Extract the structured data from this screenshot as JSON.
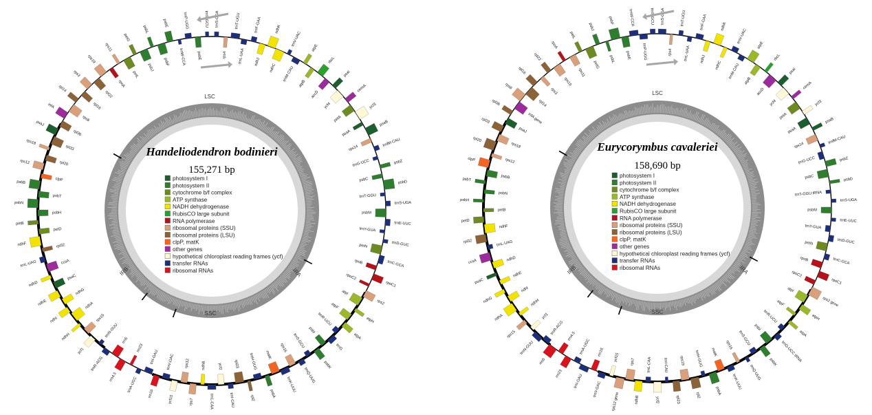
{
  "legend": [
    {
      "key": "photosystem_I",
      "label": "photosystem I",
      "color": "#1c5e2e"
    },
    {
      "key": "photosystem_II",
      "label": "photosystem II",
      "color": "#2f7d2f"
    },
    {
      "key": "cytochrome",
      "label": "cytochrome b/f complex",
      "color": "#6e8a22"
    },
    {
      "key": "atp",
      "label": "ATP synthase",
      "color": "#9bb82c"
    },
    {
      "key": "ndh",
      "label": "NADH dehydrogenase",
      "color": "#f2e400"
    },
    {
      "key": "rubisco",
      "label": "RubisCO large subunit",
      "color": "#2ca02c"
    },
    {
      "key": "rnapol",
      "label": "RNA polymerase",
      "color": "#b5121b"
    },
    {
      "key": "rps",
      "label": "ribosomal proteins (SSU)",
      "color": "#d9a07b"
    },
    {
      "key": "rpl",
      "label": "ribosomal proteins (LSU)",
      "color": "#8c6239"
    },
    {
      "key": "clp",
      "label": "clpP, matK",
      "color": "#f26522"
    },
    {
      "key": "other",
      "label": "other genes",
      "color": "#9b2c9b"
    },
    {
      "key": "ycf",
      "label": "hypothetical chloroplast reading frames (ycf)",
      "color": "#fff8d6"
    },
    {
      "key": "trna",
      "label": "transfer RNAs",
      "color": "#1d2f7a"
    },
    {
      "key": "rrna",
      "label": "ribosomal RNAs",
      "color": "#d7141e"
    }
  ],
  "maps": [
    {
      "id": "map-handeliodendron",
      "species": "Handeliodendron bodinieri",
      "size": "155,271 bp",
      "regions": {
        "lsc": "LSC",
        "ira": "IRA",
        "ssc": "SSC",
        "irb": "IRB"
      },
      "gene_labels": [
        "trnS-GGA",
        "rps4",
        "trnT-UGU",
        "trnL-UAA",
        "trnF-GAA",
        "ndhJ",
        "ndhK",
        "ndhC",
        "trnV-UAC",
        "trnM-CAU",
        "atpE",
        "atpB",
        "rbcL",
        "accD",
        "psaI",
        "ycf4",
        "cemA",
        "petA",
        "ycf3",
        "psaA",
        "psaB",
        "rps14",
        "trnfM-CAU",
        "trnG-UCC",
        "psbZ",
        "psbC",
        "psbD",
        "trnT-GGU",
        "trnS-UGA",
        "psbM",
        "trnE-UUC",
        "trnY-GUA",
        "trnD-GUC",
        "petN",
        "trnC-GCA",
        "rpoB",
        "rpoC1",
        "rpoC2",
        "rps2",
        "atpI",
        "atpH",
        "atpF",
        "atpA",
        "trnR-UCU",
        "trnG",
        "psbI",
        "psbK",
        "trnS-GCU",
        "trnQ-UUG",
        "rps16",
        "trnK-UUU",
        "matK",
        "psbA",
        "trnH-GUG",
        "rpl2",
        "rpl23",
        "trnI-CAU",
        "ycf2",
        "trnL-CAA",
        "ndhB",
        "rps7",
        "rps12",
        "ycf15",
        "trnV-GAC",
        "rrn16",
        "trnI-GAU",
        "trnA-UGC",
        "rrn23",
        "rrn4.5",
        "rrn5",
        "trnR-ACG",
        "trnN-GUU",
        "ycf1",
        "rps15",
        "ndhH",
        "ndhA",
        "ndhI",
        "ndhG",
        "ndhE",
        "psaC",
        "ndhD",
        "ccsA",
        "trnL-UAG",
        "rpl32",
        "ndhF",
        "petD",
        "petB",
        "psbH",
        "psbN",
        "psbT",
        "psbB",
        "clpP",
        "rps12",
        "rpl20",
        "rps18",
        "rpl33",
        "psaJ",
        "rpl36",
        "infA",
        "rps8",
        "rpl14",
        "rpl16",
        "rps3",
        "rpl22",
        "rps19",
        "rpoA",
        "rps11",
        "petL",
        "petG",
        "psbJ",
        "psbL",
        "psbF",
        "psbE",
        "trnW-CCA",
        "trnP-UGG",
        "psbE",
        "trnS-GCU"
      ]
    },
    {
      "id": "map-eurycorymbus",
      "species": "Eurycorymbus cavaleriei",
      "size": "158,690 bp",
      "regions": {
        "lsc": "LSC",
        "ira": "IRA",
        "ssc": "SSC",
        "irb": "IRB"
      },
      "gene_labels": [
        "trnS-GGA",
        "rps4",
        "trnT-UGU",
        "trnL-UAA",
        "trnF-GAA",
        "ndhJ",
        "ndhK",
        "ndhC",
        "trnV-UAC",
        "trnM-CAU",
        "atpE",
        "atpB",
        "rbcL",
        "accD",
        "psaI",
        "ycf4",
        "cemA",
        "petA",
        "ycf3",
        "psaA",
        "psaB",
        "rps14",
        "trnfM-CAU",
        "trnG-UCC",
        "psbZ",
        "psbC",
        "psbD",
        "trnT-GGU tRNA",
        "trnS-UGA",
        "psbM",
        "trnE-UUC",
        "trnY-GUA",
        "trnD-GUC",
        "petN",
        "trnC-GCA",
        "rpoB",
        "rpoC1",
        "rpoC2",
        "rps2 gene",
        "atpI",
        "atpH",
        "atpF",
        "atpA",
        "trnR-UCU",
        "trnG-UCC tRNA",
        "psbI",
        "psbK",
        "trnS-GCU",
        "trnQ-UUG",
        "rps16",
        "trnK-UUU",
        "matK",
        "psbA",
        "trnH-GUG",
        "rpl2",
        "rps19",
        "rpl23",
        "trnI-CAU",
        "ycf2",
        "trnL-CAA",
        "ndhB",
        "rps7",
        "rps12 gene",
        "ycf15",
        "trnV-GAC",
        "rrn16",
        "trnI-GAU",
        "trnA-UGC",
        "rrn23",
        "rrn4.5",
        "rrn5",
        "trnR-ACG",
        "trnN-GUU",
        "ycf1",
        "rps15",
        "ndhH",
        "ndhA",
        "ndhI",
        "ndhG",
        "ndhE",
        "psaC",
        "ndhD",
        "ccsA",
        "trnL-UAG",
        "rpl32",
        "ndhF",
        "petD",
        "petB",
        "psbH",
        "psbN",
        "psbT",
        "psbB",
        "clpP",
        "rps12",
        "rpl20",
        "rps18",
        "rpl33",
        "psaJ",
        "rpl36",
        "infA gene",
        "rps8",
        "rpl14",
        "rpl16",
        "rps3",
        "rpl22",
        "rps19",
        "rpoA",
        "rps11",
        "petL",
        "petG",
        "psbJ",
        "psbL",
        "psbF",
        "psbE",
        "trnW-CCA",
        "trnP-UGG",
        "trnS-GCU"
      ]
    }
  ]
}
